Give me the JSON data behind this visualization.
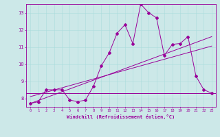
{
  "xlabel": "Windchill (Refroidissement éolien,°C)",
  "bg_color": "#cce8e8",
  "line_color": "#990099",
  "x_hours": [
    0,
    1,
    2,
    3,
    4,
    5,
    6,
    7,
    8,
    9,
    10,
    11,
    12,
    13,
    14,
    15,
    16,
    17,
    18,
    19,
    20,
    21,
    22,
    23
  ],
  "temp_data": [
    7.7,
    7.8,
    8.5,
    8.5,
    8.5,
    7.9,
    7.8,
    7.9,
    8.7,
    9.9,
    10.65,
    11.8,
    12.3,
    11.2,
    13.5,
    13.0,
    12.7,
    10.5,
    11.15,
    11.2,
    11.6,
    9.3,
    8.5,
    8.3
  ],
  "min_line_y": 8.3,
  "reg_line1_start": 7.7,
  "reg_line1_end": 11.6,
  "reg_line2_start": 8.1,
  "reg_line2_end": 11.05,
  "ylim": [
    7.5,
    13.5
  ],
  "xlim": [
    -0.5,
    23.5
  ],
  "yticks": [
    8,
    9,
    10,
    11,
    12,
    13
  ],
  "xticks": [
    0,
    1,
    2,
    3,
    4,
    5,
    6,
    7,
    8,
    9,
    10,
    11,
    12,
    13,
    14,
    15,
    16,
    17,
    18,
    19,
    20,
    21,
    22,
    23
  ]
}
